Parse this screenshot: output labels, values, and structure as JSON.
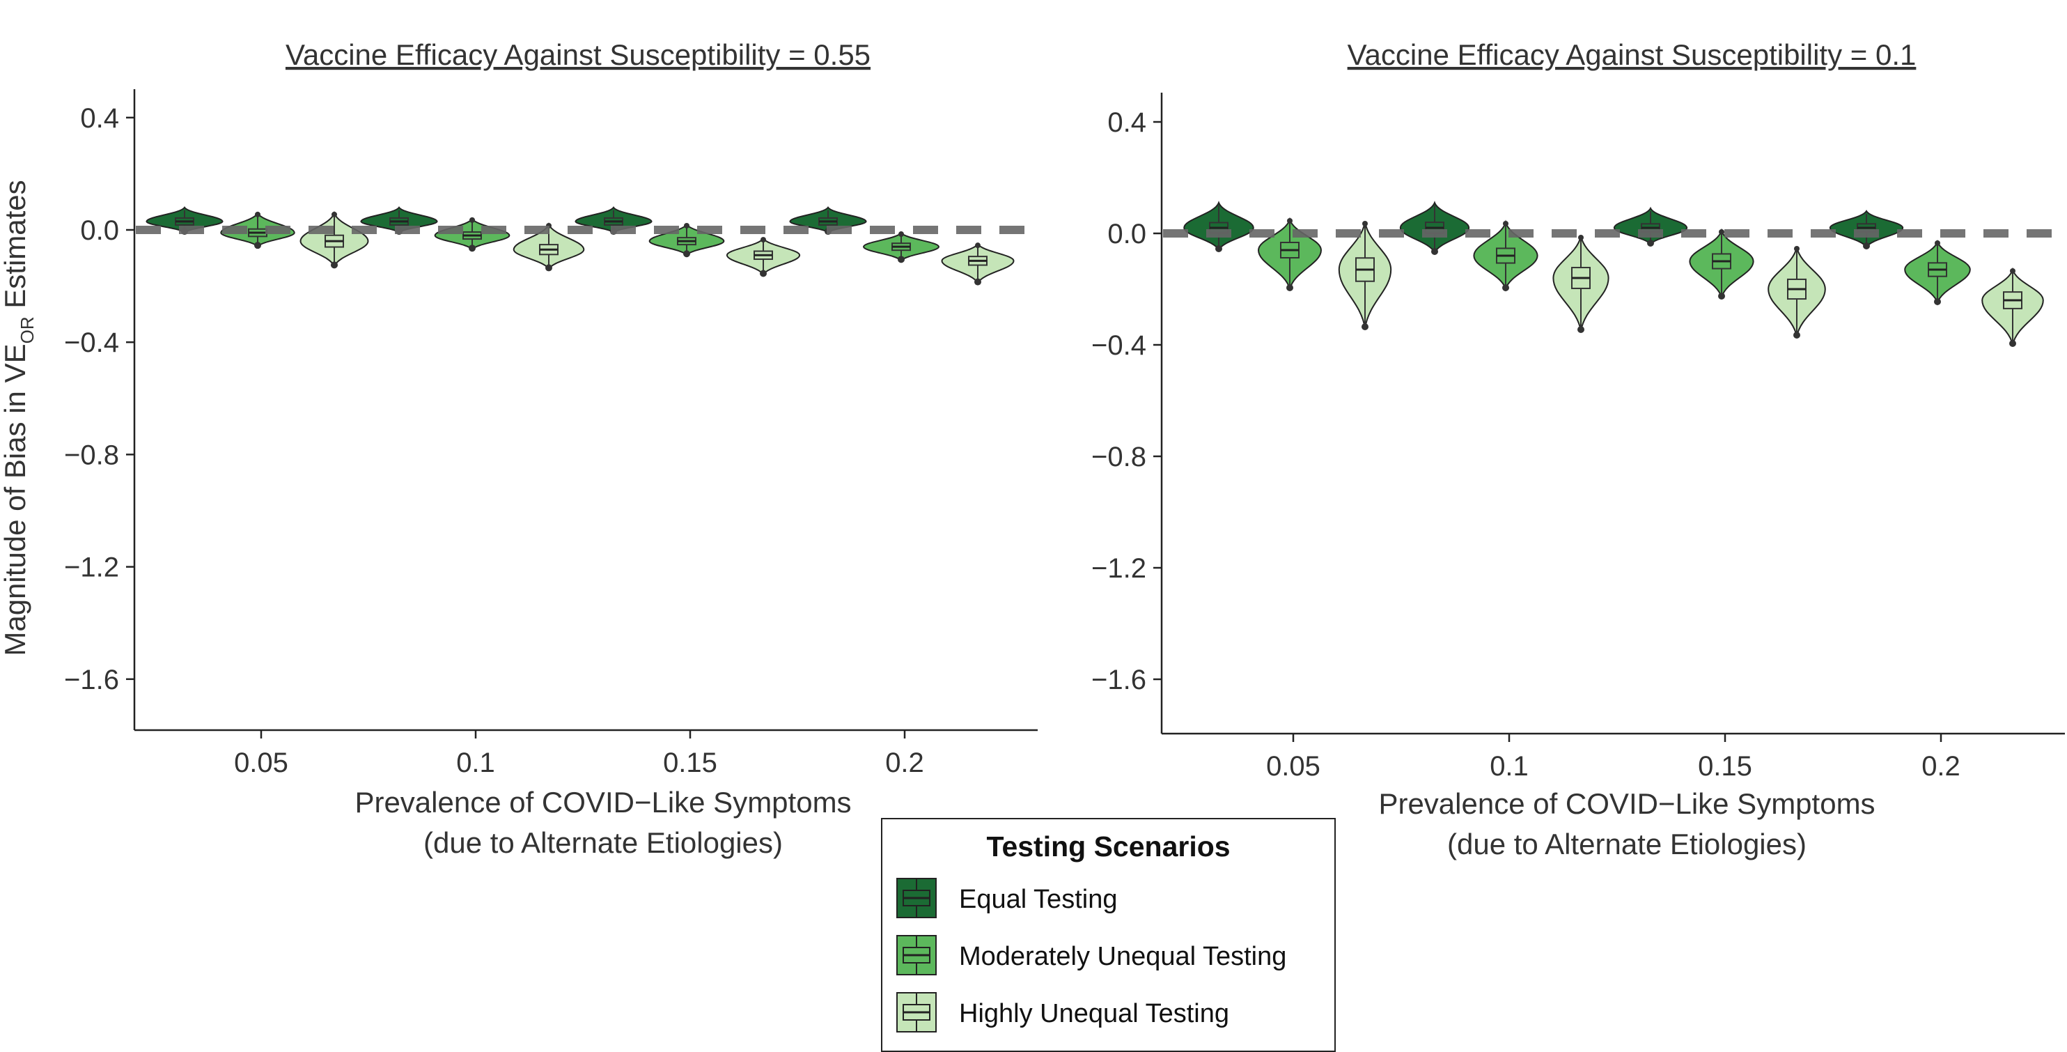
{
  "chart_data": [
    {
      "type": "violin",
      "title": "Vaccine Efficacy Against Susceptibility = 0.55",
      "xlabel_line1": "Prevalence of COVID−Like Symptoms",
      "xlabel_line2": "(due to Alternate Etiologies)",
      "ylabel_main": "Magnitude of Bias in VE",
      "ylabel_sub": "OR",
      "ylabel_end": " Estimates",
      "categories": [
        "0.05",
        "0.1",
        "0.15",
        "0.2"
      ],
      "yticks": [
        "0.4",
        "0.0",
        "−0.4",
        "−0.8",
        "−1.2",
        "−1.6"
      ],
      "ylim": [
        -1.8,
        0.48
      ],
      "reference_line": 0,
      "series": [
        {
          "name": "Equal Testing",
          "median": [
            0.03,
            0.03,
            0.03,
            0.03
          ],
          "min": [
            -0.01,
            -0.01,
            -0.01,
            -0.01
          ],
          "max": [
            0.08,
            0.08,
            0.08,
            0.08
          ]
        },
        {
          "name": "Moderately Unequal Testing",
          "median": [
            -0.01,
            -0.02,
            -0.04,
            -0.06
          ],
          "min": [
            -0.06,
            -0.07,
            -0.09,
            -0.11
          ],
          "max": [
            0.06,
            0.04,
            0.02,
            -0.01
          ]
        },
        {
          "name": "Highly Unequal Testing",
          "median": [
            -0.04,
            -0.07,
            -0.09,
            -0.11
          ],
          "min": [
            -0.13,
            -0.14,
            -0.16,
            -0.19
          ],
          "max": [
            0.06,
            0.02,
            -0.03,
            -0.05
          ]
        }
      ]
    },
    {
      "type": "violin",
      "title": "Vaccine Efficacy Against Susceptibility = 0.1",
      "xlabel_line1": "Prevalence of COVID−Like Symptoms",
      "xlabel_line2": "(due to Alternate Etiologies)",
      "categories": [
        "0.05",
        "0.1",
        "0.15",
        "0.2"
      ],
      "yticks": [
        "0.4",
        "0.0",
        "−0.4",
        "−0.8",
        "−1.2",
        "−1.6"
      ],
      "ylim": [
        -1.8,
        0.48
      ],
      "reference_line": 0,
      "series": [
        {
          "name": "Equal Testing",
          "median": [
            0.02,
            0.02,
            0.02,
            0.02
          ],
          "min": [
            -0.06,
            -0.07,
            -0.04,
            -0.05
          ],
          "max": [
            0.11,
            0.11,
            0.09,
            0.08
          ]
        },
        {
          "name": "Moderately Unequal Testing",
          "median": [
            -0.06,
            -0.08,
            -0.1,
            -0.13
          ],
          "min": [
            -0.2,
            -0.2,
            -0.23,
            -0.25
          ],
          "max": [
            0.05,
            0.04,
            0.01,
            -0.03
          ]
        },
        {
          "name": "Highly Unequal Testing",
          "median": [
            -0.13,
            -0.16,
            -0.2,
            -0.24
          ],
          "min": [
            -0.34,
            -0.35,
            -0.37,
            -0.4
          ],
          "max": [
            0.04,
            -0.01,
            -0.05,
            -0.13
          ]
        }
      ]
    }
  ],
  "legend": {
    "title": "Testing Scenarios",
    "items": [
      "Equal Testing",
      "Moderately Unequal Testing",
      "Highly Unequal Testing"
    ]
  },
  "colors": {
    "equal": "#1b6b34",
    "moderate": "#5cb85c",
    "high": "#c5e5b8",
    "reference": "#666666",
    "axis": "#222222"
  }
}
